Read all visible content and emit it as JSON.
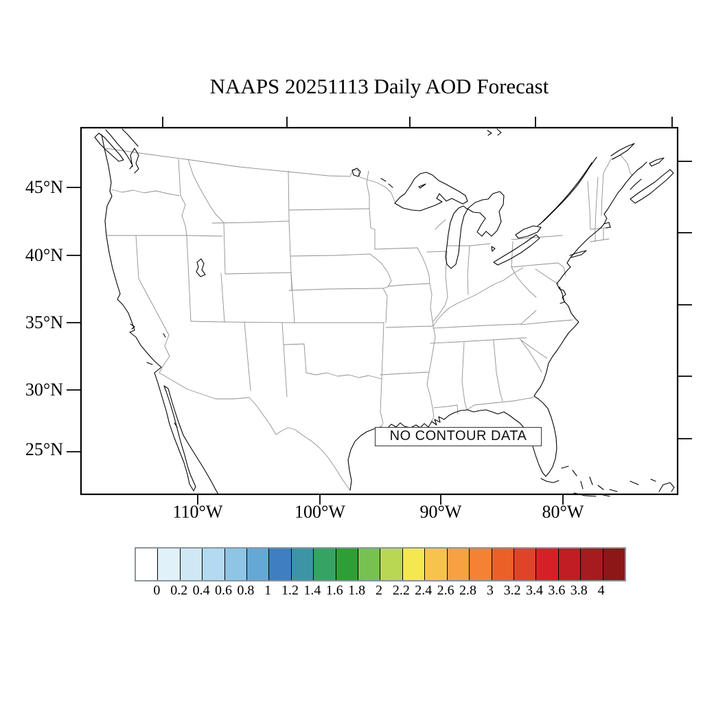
{
  "title": "NAAPS 20251113 Daily AOD Forecast",
  "no_data_label": "NO CONTOUR DATA",
  "axes": {
    "lat_labels": [
      "45°N",
      "40°N",
      "35°N",
      "30°N",
      "25°N"
    ],
    "lon_labels": [
      "110°W",
      "100°W",
      "90°W",
      "80°W"
    ]
  },
  "colorbar": {
    "labels": [
      "0",
      "0.2",
      "0.4",
      "0.6",
      "0.8",
      "1",
      "1.2",
      "1.4",
      "1.6",
      "1.8",
      "2",
      "2.2",
      "2.4",
      "2.6",
      "2.8",
      "3",
      "3.2",
      "3.4",
      "3.6",
      "3.8",
      "4"
    ],
    "colors": [
      "#ffffff",
      "#e1f1f9",
      "#cfe8f6",
      "#b3daf0",
      "#8ec4e4",
      "#66a8d5",
      "#3f7fc1",
      "#3d94a5",
      "#36a363",
      "#2f9e36",
      "#77c151",
      "#b9d753",
      "#f5e74f",
      "#f6c44b",
      "#f7a143",
      "#f58233",
      "#ec6027",
      "#e14329",
      "#d62027",
      "#c01d24",
      "#a61b20",
      "#8c1717"
    ]
  },
  "chart_data": {
    "type": "heatmap",
    "subtype": "geographic-contour-map",
    "title": "NAAPS 20251113 Daily AOD Forecast",
    "region": "Continental United States",
    "data_status": "NO CONTOUR DATA",
    "series": [],
    "colorbar_levels": [
      0,
      0.2,
      0.4,
      0.6,
      0.8,
      1,
      1.2,
      1.4,
      1.6,
      1.8,
      2,
      2.2,
      2.4,
      2.6,
      2.8,
      3,
      3.2,
      3.4,
      3.6,
      3.8,
      4
    ],
    "lat_ticks_deg_n": [
      45,
      40,
      35,
      30,
      25
    ],
    "lon_ticks_deg_w": [
      110,
      100,
      90,
      80
    ],
    "grid": false,
    "legend_position": "bottom"
  }
}
